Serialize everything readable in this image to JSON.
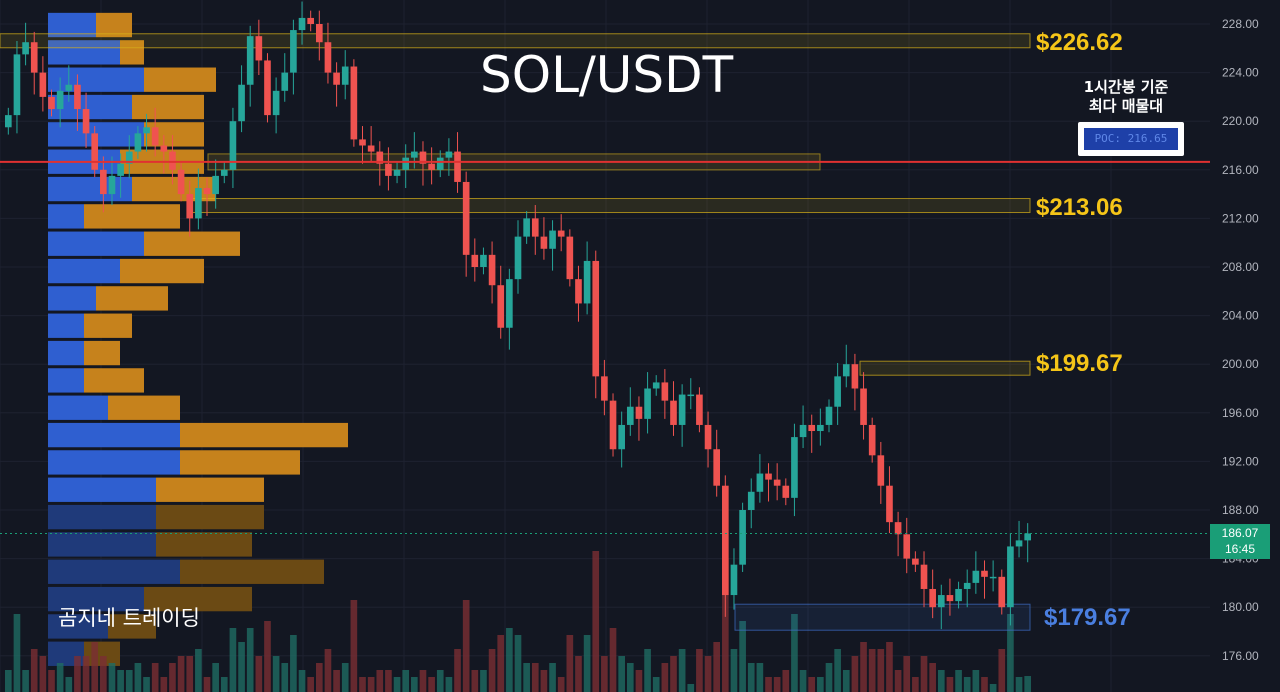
{
  "chart_data": {
    "type": "candlestick",
    "title": "SOL/USDT",
    "watermark": "곰지네 트레이딩",
    "annotation": "1시간봉 기준\n최다 매물대",
    "poc_label": "POC: 216.65",
    "poc_price": 216.65,
    "current_price": "186.07",
    "current_time": "16:45",
    "current_value": 186.07,
    "y_axis": {
      "min": 174.5,
      "max": 230,
      "ticks": [
        "176.00",
        "180.00",
        "184.00",
        "188.00",
        "192.00",
        "196.00",
        "200.00",
        "204.00",
        "208.00",
        "212.00",
        "216.00",
        "220.00",
        "224.00",
        "228.00"
      ]
    },
    "levels": [
      {
        "label": "$226.62",
        "price": 226.62,
        "color": "#f5c518"
      },
      {
        "label": "$213.06",
        "price": 213.06,
        "color": "#f5c518"
      },
      {
        "label": "$199.67",
        "price": 199.67,
        "color": "#f5c518"
      },
      {
        "label": "$179.67",
        "price": 179.67,
        "color": "#4a7fe0"
      }
    ],
    "candles_close": [
      220.5,
      225.5,
      226.5,
      224,
      222,
      221,
      222.5,
      223,
      221,
      219,
      216,
      214,
      215.5,
      216.5,
      217.5,
      219,
      219.5,
      218,
      217.5,
      216,
      214,
      212,
      214.5,
      214,
      215.5,
      216,
      220,
      223,
      227,
      225,
      220.5,
      222.5,
      224,
      227.5,
      228.5,
      228,
      226.5,
      224,
      223,
      224.5,
      218.5,
      218,
      217.5,
      216.5,
      215.5,
      216,
      217,
      217.5,
      216.5,
      216,
      217,
      217.5,
      215,
      209,
      208,
      209,
      206.5,
      203,
      207,
      210.5,
      212,
      210.5,
      209.5,
      211,
      210.5,
      207,
      205,
      208.5,
      199,
      197,
      193,
      195,
      196.5,
      195.5,
      198,
      198.5,
      197,
      195,
      197.5,
      197.5,
      195,
      193,
      190,
      181,
      183.5,
      188,
      189.5,
      191,
      190.5,
      190,
      189,
      194,
      195,
      194.5,
      195,
      196.5,
      199,
      200,
      198,
      195,
      192.5,
      190,
      187,
      186,
      184,
      183.5,
      181.5,
      180,
      181,
      180.5,
      181.5,
      182,
      183,
      182.5,
      182.5,
      180,
      185,
      185.5,
      186.07
    ],
    "volume_profile": {
      "price_step": 2.25,
      "buy": [
        4,
        6,
        8,
        7,
        8,
        6,
        7,
        3,
        8,
        6,
        4,
        3,
        3,
        3,
        5,
        11,
        11,
        9,
        9,
        9,
        11,
        8,
        5,
        3
      ],
      "sell": [
        3,
        2,
        6,
        6,
        5,
        7,
        7,
        8,
        8,
        7,
        6,
        4,
        3,
        5,
        6,
        14,
        10,
        9,
        9,
        8,
        12,
        9,
        4,
        3
      ]
    }
  }
}
